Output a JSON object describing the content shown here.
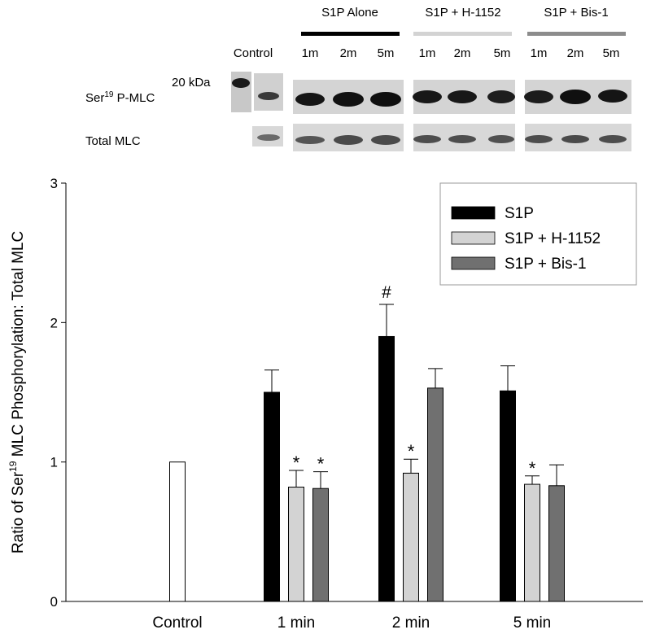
{
  "blot": {
    "group_headers": [
      "S1P Alone",
      "S1P + H-1152",
      "S1P + Bis-1"
    ],
    "group_colors": [
      "#000000",
      "#d3d3d3",
      "#8c8c8c"
    ],
    "control_label": "Control",
    "lane_labels": [
      "1m",
      "2m",
      "5m"
    ],
    "marker_label": "20 kDa",
    "row_label_pmlc_prefix": "Ser",
    "row_label_pmlc_sup": "19",
    "row_label_pmlc_suffix": " P-MLC",
    "row_label_total": "Total MLC"
  },
  "chart_data": {
    "type": "bar",
    "categories": [
      "Control",
      "1 min",
      "2 min",
      "5 min"
    ],
    "ylabel_prefix": "Ratio of Ser",
    "ylabel_sup": "19",
    "ylabel_suffix": " MLC Phosphorylation: Total MLC",
    "ylim": [
      0,
      3
    ],
    "yticks": [
      "0",
      "1",
      "2",
      "3"
    ],
    "legend_position": "top-right",
    "control": {
      "value": 1.0,
      "color": "#ffffff"
    },
    "series": [
      {
        "name": "S1P",
        "color": "#000000",
        "values": [
          null,
          1.5,
          1.9,
          1.51
        ],
        "errors": [
          null,
          0.16,
          0.23,
          0.18
        ]
      },
      {
        "name": "S1P + H-1152",
        "color": "#d3d3d3",
        "values": [
          null,
          0.82,
          0.92,
          0.84
        ],
        "errors": [
          null,
          0.12,
          0.1,
          0.06
        ]
      },
      {
        "name": "S1P + Bis-1",
        "color": "#707070",
        "values": [
          null,
          0.81,
          1.53,
          0.83
        ],
        "errors": [
          null,
          0.12,
          0.14,
          0.15
        ]
      }
    ],
    "annotations": [
      {
        "text": "*",
        "category": 1,
        "series": 1
      },
      {
        "text": "*",
        "category": 1,
        "series": 2
      },
      {
        "text": "#",
        "category": 2,
        "series": 0
      },
      {
        "text": "*",
        "category": 2,
        "series": 1
      },
      {
        "text": "*",
        "category": 3,
        "series": 1
      }
    ]
  }
}
